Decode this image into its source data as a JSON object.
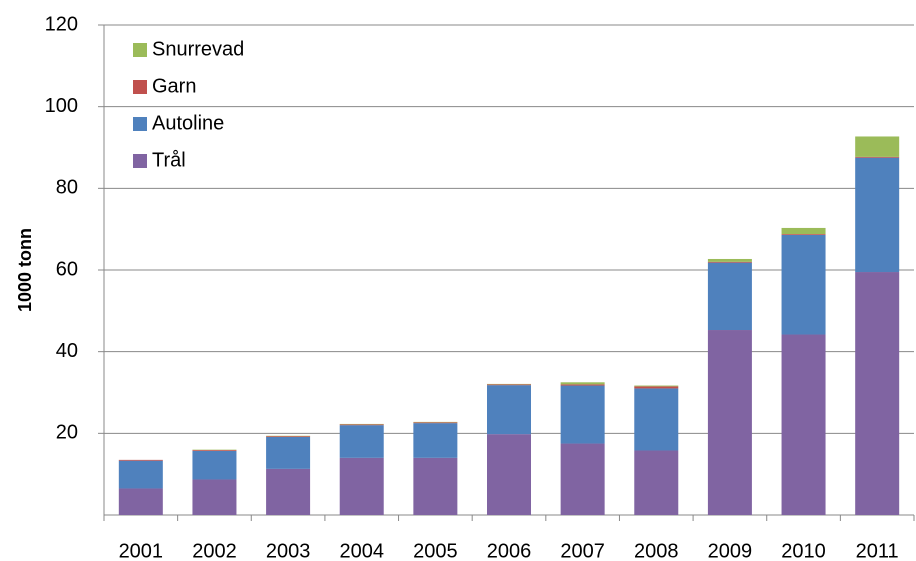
{
  "chart_data": {
    "type": "stacked_bar",
    "y_label": "1000 tonn",
    "categories": [
      "2001",
      "2002",
      "2003",
      "2004",
      "2005",
      "2006",
      "2007",
      "2008",
      "2009",
      "2010",
      "2011"
    ],
    "series": [
      {
        "name": "Trål",
        "color": "#8064a2",
        "values": [
          6.5,
          8.7,
          11.3,
          14,
          14,
          19.8,
          17.5,
          15.8,
          45.3,
          44.2,
          59.5
        ]
      },
      {
        "name": "Autoline",
        "color": "#4f81bd",
        "values": [
          6.8,
          7,
          7.8,
          8,
          8.5,
          12,
          14.2,
          15.2,
          16.5,
          24.4,
          28
        ]
      },
      {
        "name": "Garn",
        "color": "#c0504d",
        "values": [
          0.2,
          0.2,
          0.2,
          0.2,
          0.2,
          0.2,
          0.3,
          0.5,
          0.2,
          0.2,
          0.2
        ]
      },
      {
        "name": "Snurrevad",
        "color": "#9bbb59",
        "values": [
          0,
          0.1,
          0.1,
          0.1,
          0.1,
          0.1,
          0.5,
          0.2,
          0.7,
          1.5,
          5
        ]
      }
    ],
    "ylim": [
      0,
      120
    ],
    "yticks": [
      20,
      40,
      60,
      80,
      100,
      120
    ],
    "grid": true,
    "legend": "top-left"
  }
}
